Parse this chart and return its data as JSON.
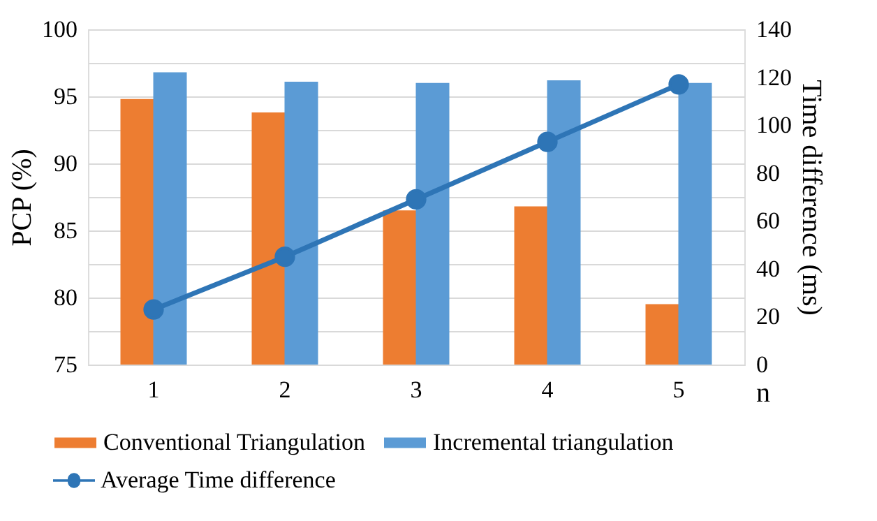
{
  "chart_data": {
    "type": "bar",
    "categories": [
      "1",
      "2",
      "3",
      "4",
      "5"
    ],
    "xlabel": "n",
    "ylabel": "PCP (%)",
    "y2label": "Time difference (ms)",
    "series": [
      {
        "name": "Conventional Triangulation",
        "color": "#ed7d31",
        "values": [
          94.8,
          93.8,
          86.5,
          86.8,
          79.5
        ]
      },
      {
        "name": "Incremental triangulation",
        "color": "#5b9bd5",
        "values": [
          96.8,
          96.1,
          96.0,
          96.2,
          96.0
        ]
      },
      {
        "name": "Average Time difference",
        "type": "line",
        "axis": "y2",
        "color": "#2e75b6",
        "marker": "circle",
        "values": [
          23,
          45,
          69,
          93,
          117
        ]
      }
    ],
    "ylim": [
      75,
      100
    ],
    "yticks": [
      75,
      {
        "value": 77.5,
        "label": null
      },
      80,
      {
        "value": 82.5,
        "label": null
      },
      85,
      {
        "value": 87.5,
        "label": null
      },
      90,
      {
        "value": 92.5,
        "label": null
      },
      95,
      {
        "value": 97.5,
        "label": null
      },
      100
    ],
    "y2lim": [
      0,
      140
    ],
    "y2ticks": [
      0,
      20,
      40,
      60,
      80,
      100,
      120,
      140
    ],
    "grid": "y",
    "legend": "bottom"
  }
}
